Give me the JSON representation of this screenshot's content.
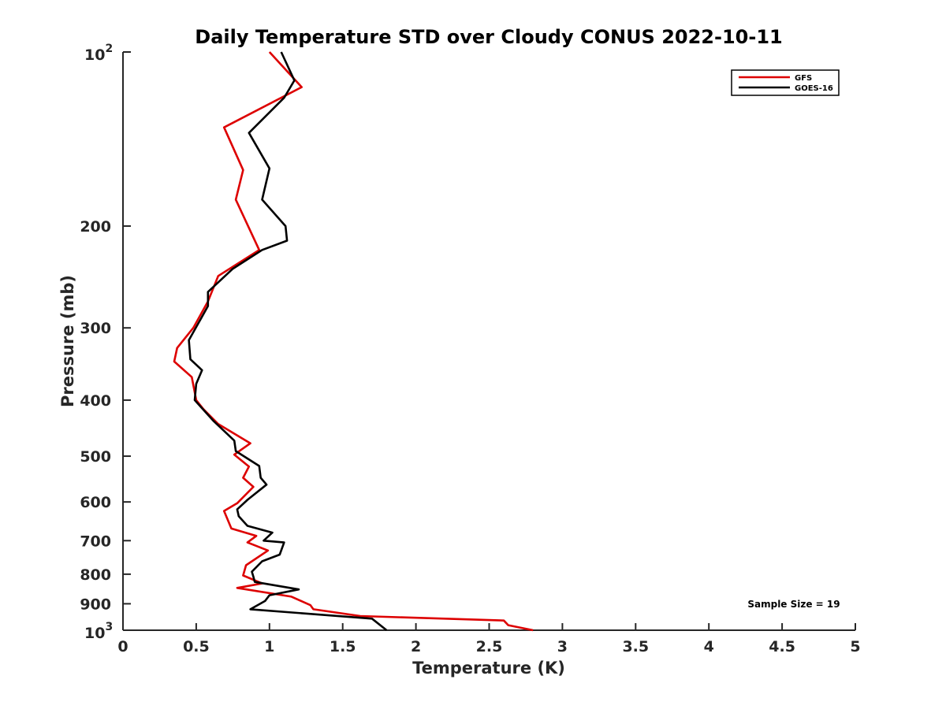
{
  "chart_data": {
    "type": "line",
    "title": "Daily Temperature STD over Cloudy CONUS 2022-10-11",
    "xlabel": "Temperature (K)",
    "ylabel": "Pressure (mb)",
    "xlim": [
      0,
      5
    ],
    "ylim": [
      100,
      1000
    ],
    "y_scale": "log",
    "y_reversed": true,
    "x_ticks": [
      0,
      0.5,
      1,
      1.5,
      2,
      2.5,
      3,
      3.5,
      4,
      4.5,
      5
    ],
    "x_tick_labels": [
      "0",
      "0.5",
      "1",
      "1.5",
      "2",
      "2.5",
      "3",
      "3.5",
      "4",
      "4.5",
      "5"
    ],
    "y_ticks": [
      {
        "value": 100,
        "base": "10",
        "exp": "2"
      },
      {
        "value": 200,
        "label": "200"
      },
      {
        "value": 300,
        "label": "300"
      },
      {
        "value": 400,
        "label": "400"
      },
      {
        "value": 500,
        "label": "500"
      },
      {
        "value": 600,
        "label": "600"
      },
      {
        "value": 700,
        "label": "700"
      },
      {
        "value": 800,
        "label": "800"
      },
      {
        "value": 900,
        "label": "900"
      },
      {
        "value": 1000,
        "base": "10",
        "exp": "3"
      }
    ],
    "legend_position": "top-right",
    "annotation": "Sample Size = 19",
    "series": [
      {
        "name": "GFS",
        "color": "#dd0000",
        "points": [
          [
            1.0,
            100
          ],
          [
            1.22,
            115
          ],
          [
            0.69,
            135
          ],
          [
            0.82,
            160
          ],
          [
            0.77,
            180
          ],
          [
            0.93,
            220
          ],
          [
            0.65,
            244
          ],
          [
            0.58,
            270
          ],
          [
            0.48,
            300
          ],
          [
            0.37,
            325
          ],
          [
            0.35,
            343
          ],
          [
            0.47,
            365
          ],
          [
            0.5,
            400
          ],
          [
            0.55,
            415
          ],
          [
            0.65,
            440
          ],
          [
            0.87,
            475
          ],
          [
            0.76,
            497
          ],
          [
            0.86,
            521
          ],
          [
            0.82,
            545
          ],
          [
            0.89,
            565
          ],
          [
            0.78,
            603
          ],
          [
            0.69,
            622
          ],
          [
            0.74,
            667
          ],
          [
            0.91,
            687
          ],
          [
            0.85,
            705
          ],
          [
            0.99,
            728
          ],
          [
            0.84,
            772
          ],
          [
            0.82,
            804
          ],
          [
            0.95,
            830
          ],
          [
            0.78,
            845
          ],
          [
            1.15,
            875
          ],
          [
            1.28,
            905
          ],
          [
            1.3,
            920
          ],
          [
            1.62,
            945
          ],
          [
            2.6,
            962
          ],
          [
            2.63,
            980
          ],
          [
            2.8,
            1000
          ]
        ]
      },
      {
        "name": "GOES-16",
        "color": "#000000",
        "points": [
          [
            1.08,
            100
          ],
          [
            1.17,
            112
          ],
          [
            1.1,
            120
          ],
          [
            0.86,
            138
          ],
          [
            1.0,
            159
          ],
          [
            0.95,
            180
          ],
          [
            1.11,
            200
          ],
          [
            1.12,
            212
          ],
          [
            0.95,
            220
          ],
          [
            0.75,
            237
          ],
          [
            0.58,
            260
          ],
          [
            0.58,
            275
          ],
          [
            0.45,
            315
          ],
          [
            0.46,
            340
          ],
          [
            0.54,
            355
          ],
          [
            0.5,
            375
          ],
          [
            0.49,
            400
          ],
          [
            0.62,
            435
          ],
          [
            0.76,
            470
          ],
          [
            0.77,
            490
          ],
          [
            0.93,
            520
          ],
          [
            0.94,
            545
          ],
          [
            0.98,
            560
          ],
          [
            0.85,
            595
          ],
          [
            0.78,
            618
          ],
          [
            0.79,
            635
          ],
          [
            0.85,
            660
          ],
          [
            1.02,
            678
          ],
          [
            0.96,
            700
          ],
          [
            1.1,
            705
          ],
          [
            1.07,
            740
          ],
          [
            0.95,
            760
          ],
          [
            0.88,
            792
          ],
          [
            0.89,
            808
          ],
          [
            0.9,
            825
          ],
          [
            1.2,
            850
          ],
          [
            1.0,
            870
          ],
          [
            0.97,
            890
          ],
          [
            0.87,
            920
          ],
          [
            1.7,
            955
          ],
          [
            1.8,
            1000
          ]
        ]
      }
    ]
  }
}
